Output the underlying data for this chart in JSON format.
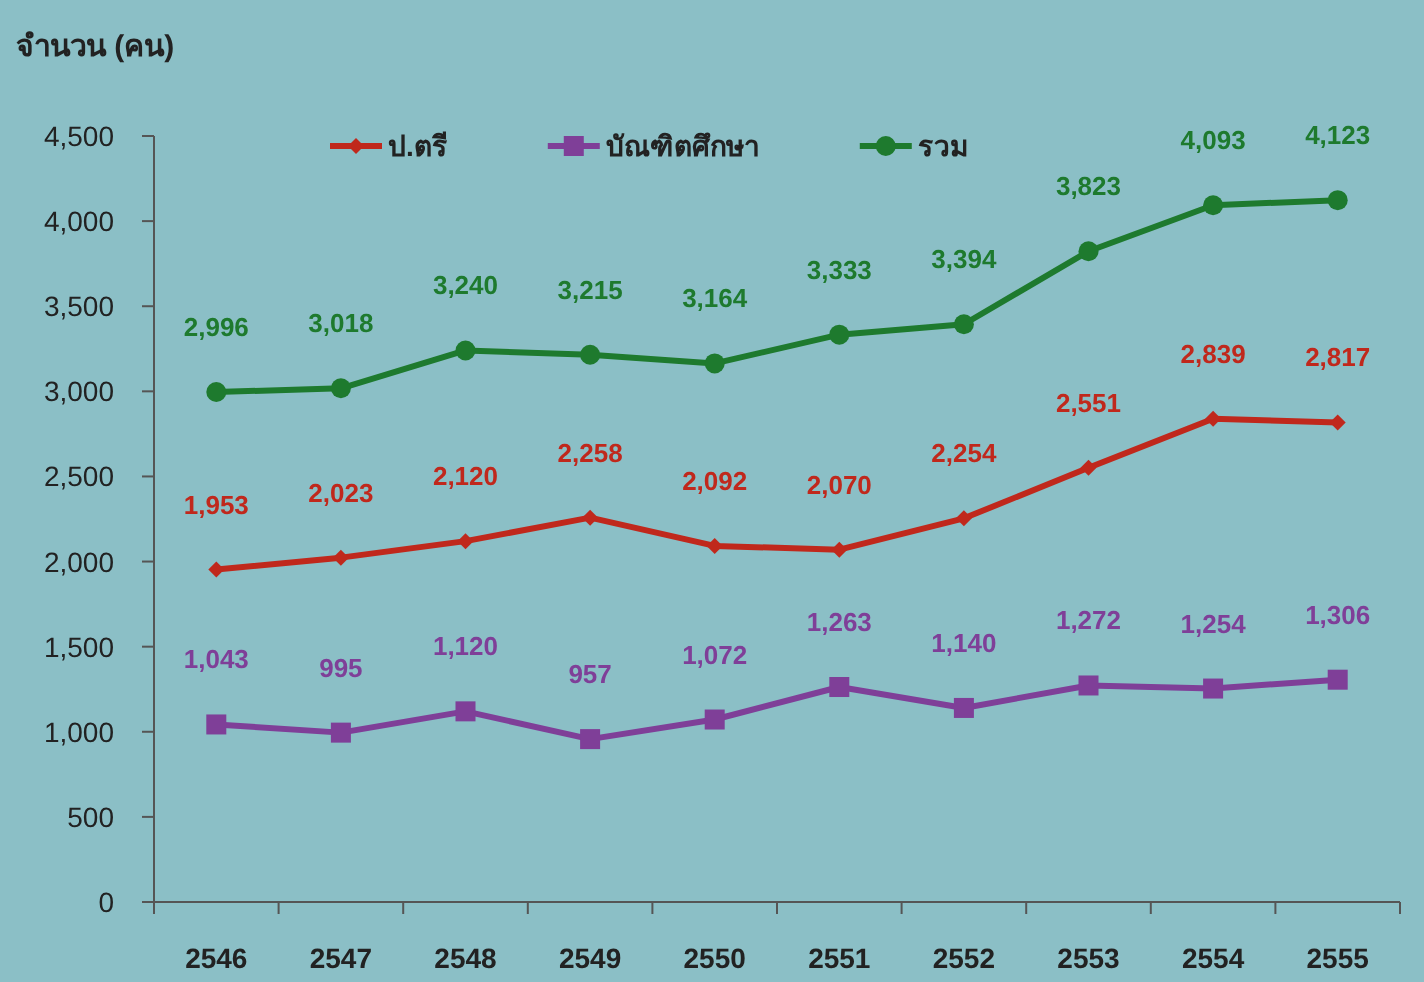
{
  "chart_data": {
    "type": "line",
    "ylabel": "จำนวน (คน)",
    "categories": [
      "2546",
      "2547",
      "2548",
      "2549",
      "2550",
      "2551",
      "2552",
      "2553",
      "2554",
      "2555"
    ],
    "series": [
      {
        "name": "ป.ตรี",
        "color": "#c0281c",
        "marker": "diamond",
        "values": [
          1953,
          2023,
          2120,
          2258,
          2092,
          2070,
          2254,
          2551,
          2839,
          2817
        ],
        "value_labels": [
          "1,953",
          "2,023",
          "2,120",
          "2,258",
          "2,092",
          "2,070",
          "2,254",
          "2,551",
          "2,839",
          "2,817"
        ]
      },
      {
        "name": "บัณฑิตศึกษา",
        "color": "#7f3f98",
        "marker": "square",
        "values": [
          1043,
          995,
          1120,
          957,
          1072,
          1263,
          1140,
          1272,
          1254,
          1306
        ],
        "value_labels": [
          "1,043",
          "995",
          "1,120",
          "957",
          "1,072",
          "1,263",
          "1,140",
          "1,272",
          "1,254",
          "1,306"
        ]
      },
      {
        "name": "รวม",
        "color": "#1e7a2e",
        "marker": "circle",
        "values": [
          2996,
          3018,
          3240,
          3215,
          3164,
          3333,
          3394,
          3823,
          4093,
          4123
        ],
        "value_labels": [
          "2,996",
          "3,018",
          "3,240",
          "3,215",
          "3,164",
          "3,333",
          "3,394",
          "3,823",
          "4,093",
          "4,123"
        ]
      }
    ],
    "ylim": [
      0,
      4500
    ],
    "yticks": [
      0,
      500,
      {
        "value": 1000,
        "label": "1,000"
      },
      {
        "value": 1500,
        "label": "1,500"
      },
      {
        "value": 2000,
        "label": "2,000"
      },
      {
        "value": 2500,
        "label": "2,500"
      },
      {
        "value": 3000,
        "label": "3,000"
      },
      {
        "value": 3500,
        "label": "3,500"
      },
      {
        "value": 4000,
        "label": "4,000"
      },
      {
        "value": 4500,
        "label": "4,500"
      }
    ],
    "legend": "top"
  }
}
